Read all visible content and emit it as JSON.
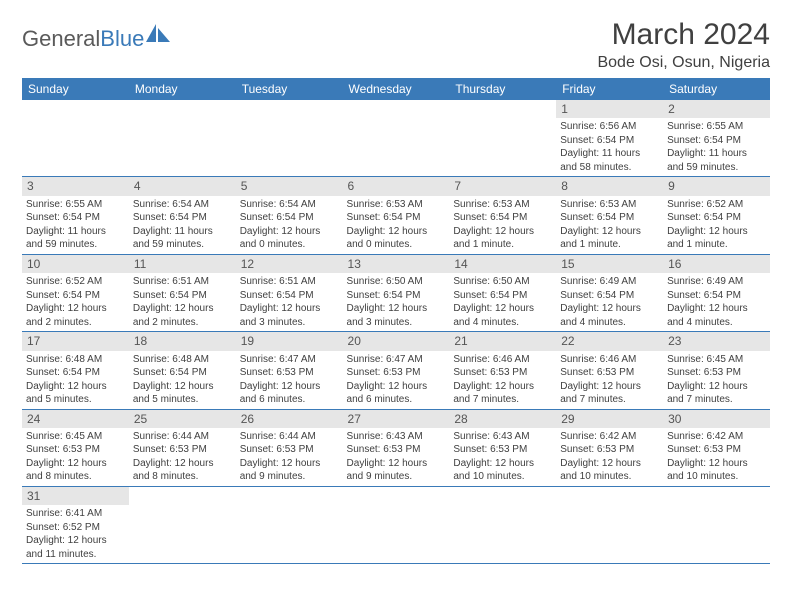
{
  "brand": {
    "part1": "General",
    "part2": "Blue"
  },
  "title": "March 2024",
  "location": "Bode Osi, Osun, Nigeria",
  "colors": {
    "header_bg": "#3a7ab8",
    "header_text": "#ffffff",
    "daynum_bg": "#e6e6e6",
    "text": "#404040",
    "row_border": "#3a7ab8"
  },
  "weekdays": [
    "Sunday",
    "Monday",
    "Tuesday",
    "Wednesday",
    "Thursday",
    "Friday",
    "Saturday"
  ],
  "weeks": [
    [
      null,
      null,
      null,
      null,
      null,
      {
        "n": "1",
        "l1": "Sunrise: 6:56 AM",
        "l2": "Sunset: 6:54 PM",
        "l3": "Daylight: 11 hours",
        "l4": "and 58 minutes."
      },
      {
        "n": "2",
        "l1": "Sunrise: 6:55 AM",
        "l2": "Sunset: 6:54 PM",
        "l3": "Daylight: 11 hours",
        "l4": "and 59 minutes."
      }
    ],
    [
      {
        "n": "3",
        "l1": "Sunrise: 6:55 AM",
        "l2": "Sunset: 6:54 PM",
        "l3": "Daylight: 11 hours",
        "l4": "and 59 minutes."
      },
      {
        "n": "4",
        "l1": "Sunrise: 6:54 AM",
        "l2": "Sunset: 6:54 PM",
        "l3": "Daylight: 11 hours",
        "l4": "and 59 minutes."
      },
      {
        "n": "5",
        "l1": "Sunrise: 6:54 AM",
        "l2": "Sunset: 6:54 PM",
        "l3": "Daylight: 12 hours",
        "l4": "and 0 minutes."
      },
      {
        "n": "6",
        "l1": "Sunrise: 6:53 AM",
        "l2": "Sunset: 6:54 PM",
        "l3": "Daylight: 12 hours",
        "l4": "and 0 minutes."
      },
      {
        "n": "7",
        "l1": "Sunrise: 6:53 AM",
        "l2": "Sunset: 6:54 PM",
        "l3": "Daylight: 12 hours",
        "l4": "and 1 minute."
      },
      {
        "n": "8",
        "l1": "Sunrise: 6:53 AM",
        "l2": "Sunset: 6:54 PM",
        "l3": "Daylight: 12 hours",
        "l4": "and 1 minute."
      },
      {
        "n": "9",
        "l1": "Sunrise: 6:52 AM",
        "l2": "Sunset: 6:54 PM",
        "l3": "Daylight: 12 hours",
        "l4": "and 1 minute."
      }
    ],
    [
      {
        "n": "10",
        "l1": "Sunrise: 6:52 AM",
        "l2": "Sunset: 6:54 PM",
        "l3": "Daylight: 12 hours",
        "l4": "and 2 minutes."
      },
      {
        "n": "11",
        "l1": "Sunrise: 6:51 AM",
        "l2": "Sunset: 6:54 PM",
        "l3": "Daylight: 12 hours",
        "l4": "and 2 minutes."
      },
      {
        "n": "12",
        "l1": "Sunrise: 6:51 AM",
        "l2": "Sunset: 6:54 PM",
        "l3": "Daylight: 12 hours",
        "l4": "and 3 minutes."
      },
      {
        "n": "13",
        "l1": "Sunrise: 6:50 AM",
        "l2": "Sunset: 6:54 PM",
        "l3": "Daylight: 12 hours",
        "l4": "and 3 minutes."
      },
      {
        "n": "14",
        "l1": "Sunrise: 6:50 AM",
        "l2": "Sunset: 6:54 PM",
        "l3": "Daylight: 12 hours",
        "l4": "and 4 minutes."
      },
      {
        "n": "15",
        "l1": "Sunrise: 6:49 AM",
        "l2": "Sunset: 6:54 PM",
        "l3": "Daylight: 12 hours",
        "l4": "and 4 minutes."
      },
      {
        "n": "16",
        "l1": "Sunrise: 6:49 AM",
        "l2": "Sunset: 6:54 PM",
        "l3": "Daylight: 12 hours",
        "l4": "and 4 minutes."
      }
    ],
    [
      {
        "n": "17",
        "l1": "Sunrise: 6:48 AM",
        "l2": "Sunset: 6:54 PM",
        "l3": "Daylight: 12 hours",
        "l4": "and 5 minutes."
      },
      {
        "n": "18",
        "l1": "Sunrise: 6:48 AM",
        "l2": "Sunset: 6:54 PM",
        "l3": "Daylight: 12 hours",
        "l4": "and 5 minutes."
      },
      {
        "n": "19",
        "l1": "Sunrise: 6:47 AM",
        "l2": "Sunset: 6:53 PM",
        "l3": "Daylight: 12 hours",
        "l4": "and 6 minutes."
      },
      {
        "n": "20",
        "l1": "Sunrise: 6:47 AM",
        "l2": "Sunset: 6:53 PM",
        "l3": "Daylight: 12 hours",
        "l4": "and 6 minutes."
      },
      {
        "n": "21",
        "l1": "Sunrise: 6:46 AM",
        "l2": "Sunset: 6:53 PM",
        "l3": "Daylight: 12 hours",
        "l4": "and 7 minutes."
      },
      {
        "n": "22",
        "l1": "Sunrise: 6:46 AM",
        "l2": "Sunset: 6:53 PM",
        "l3": "Daylight: 12 hours",
        "l4": "and 7 minutes."
      },
      {
        "n": "23",
        "l1": "Sunrise: 6:45 AM",
        "l2": "Sunset: 6:53 PM",
        "l3": "Daylight: 12 hours",
        "l4": "and 7 minutes."
      }
    ],
    [
      {
        "n": "24",
        "l1": "Sunrise: 6:45 AM",
        "l2": "Sunset: 6:53 PM",
        "l3": "Daylight: 12 hours",
        "l4": "and 8 minutes."
      },
      {
        "n": "25",
        "l1": "Sunrise: 6:44 AM",
        "l2": "Sunset: 6:53 PM",
        "l3": "Daylight: 12 hours",
        "l4": "and 8 minutes."
      },
      {
        "n": "26",
        "l1": "Sunrise: 6:44 AM",
        "l2": "Sunset: 6:53 PM",
        "l3": "Daylight: 12 hours",
        "l4": "and 9 minutes."
      },
      {
        "n": "27",
        "l1": "Sunrise: 6:43 AM",
        "l2": "Sunset: 6:53 PM",
        "l3": "Daylight: 12 hours",
        "l4": "and 9 minutes."
      },
      {
        "n": "28",
        "l1": "Sunrise: 6:43 AM",
        "l2": "Sunset: 6:53 PM",
        "l3": "Daylight: 12 hours",
        "l4": "and 10 minutes."
      },
      {
        "n": "29",
        "l1": "Sunrise: 6:42 AM",
        "l2": "Sunset: 6:53 PM",
        "l3": "Daylight: 12 hours",
        "l4": "and 10 minutes."
      },
      {
        "n": "30",
        "l1": "Sunrise: 6:42 AM",
        "l2": "Sunset: 6:53 PM",
        "l3": "Daylight: 12 hours",
        "l4": "and 10 minutes."
      }
    ],
    [
      {
        "n": "31",
        "l1": "Sunrise: 6:41 AM",
        "l2": "Sunset: 6:52 PM",
        "l3": "Daylight: 12 hours",
        "l4": "and 11 minutes."
      },
      null,
      null,
      null,
      null,
      null,
      null
    ]
  ]
}
